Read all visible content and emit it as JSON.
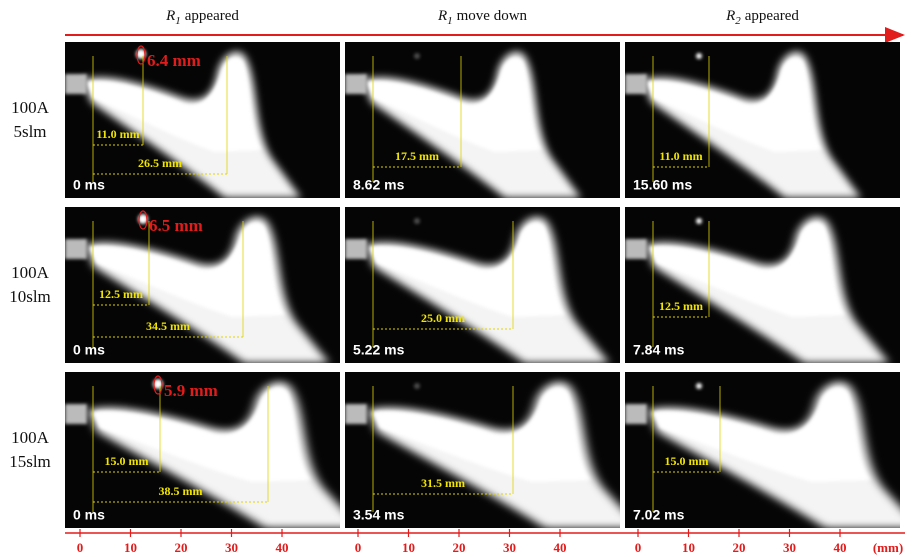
{
  "columns": [
    {
      "symbol": "R",
      "subscript": "1",
      "text": "appeared"
    },
    {
      "symbol": "R",
      "subscript": "1",
      "text": "move down"
    },
    {
      "symbol": "R",
      "subscript": "2",
      "text": "appeared"
    }
  ],
  "rows": [
    {
      "label": [
        "100A",
        "5slm"
      ],
      "panels": [
        {
          "time": "0 ms",
          "size": "6.4 mm",
          "distances": [
            "11.0 mm",
            "26.5 mm"
          ]
        },
        {
          "time": "8.62 ms",
          "distances": [
            "17.5 mm"
          ]
        },
        {
          "time": "15.60 ms",
          "distances": [
            "11.0 mm"
          ]
        }
      ]
    },
    {
      "label": [
        "100A",
        "10slm"
      ],
      "panels": [
        {
          "time": "0 ms",
          "size": "6.5 mm",
          "distances": [
            "12.5 mm",
            "34.5 mm"
          ]
        },
        {
          "time": "5.22 ms",
          "distances": [
            "25.0 mm"
          ]
        },
        {
          "time": "7.84 ms",
          "distances": [
            "12.5 mm"
          ]
        }
      ]
    },
    {
      "label": [
        "100A",
        "15slm"
      ],
      "panels": [
        {
          "time": "0 ms",
          "size": "5.9 mm",
          "distances": [
            "15.0 mm",
            "38.5 mm"
          ]
        },
        {
          "time": "3.54 ms",
          "distances": [
            "31.5 mm"
          ]
        },
        {
          "time": "7.02 ms",
          "distances": [
            "15.0 mm"
          ]
        }
      ]
    }
  ],
  "axis": {
    "ticks": [
      0,
      10,
      20,
      30,
      40
    ],
    "unit": "(mm)"
  }
}
